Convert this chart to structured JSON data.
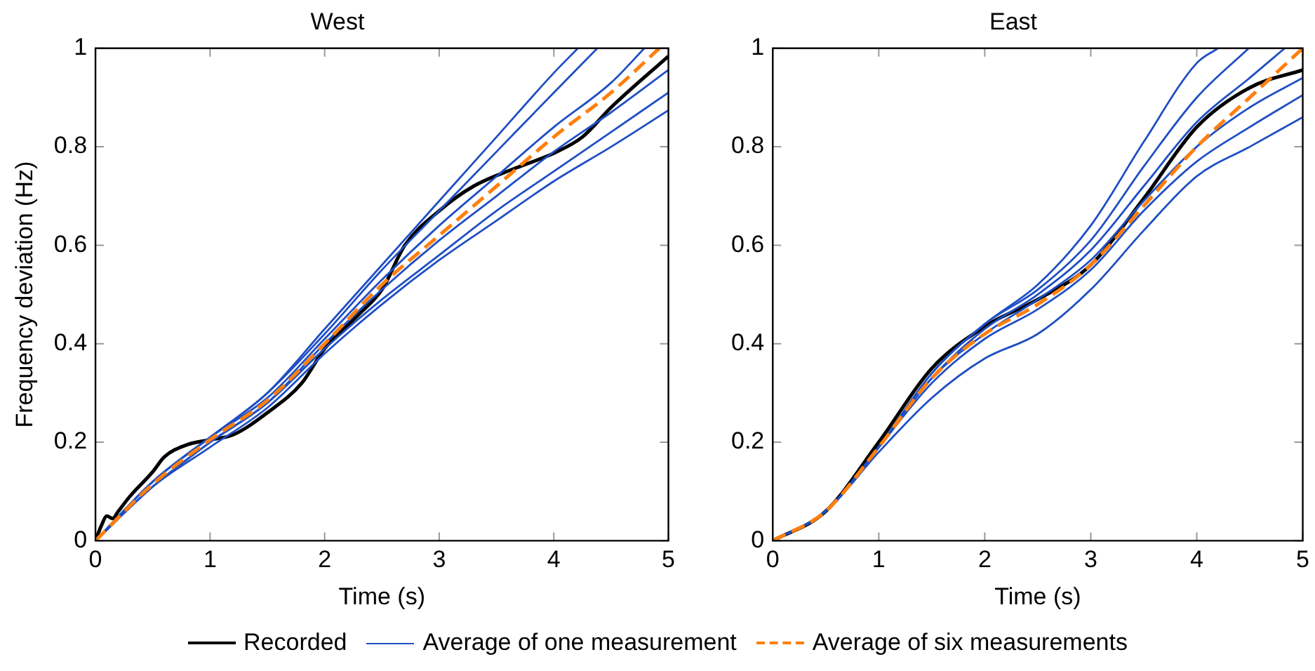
{
  "chart_data": [
    {
      "type": "line",
      "title": "West",
      "xlabel": "Time (s)",
      "ylabel": "Frequency deviation (Hz)",
      "xlim": [
        0,
        5
      ],
      "ylim": [
        0,
        1
      ],
      "xticks": [
        0,
        1,
        2,
        3,
        4,
        5
      ],
      "yticks": [
        0,
        0.2,
        0.4,
        0.6,
        0.8,
        1
      ],
      "grid": false,
      "legend": "bottom",
      "marker": "none",
      "series": [
        {
          "name": "Recorded",
          "color": "#000000",
          "line_style": "solid",
          "x": [
            0,
            0.05,
            0.1,
            0.15,
            0.2,
            0.3,
            0.5,
            0.6,
            0.8,
            1,
            1.2,
            1.5,
            1.8,
            2,
            2.3,
            2.5,
            2.7,
            3,
            3.3,
            3.67,
            4,
            4.25,
            4.5,
            5
          ],
          "values": [
            0,
            0.03,
            0.05,
            0.045,
            0.06,
            0.09,
            0.14,
            0.17,
            0.195,
            0.205,
            0.215,
            0.26,
            0.32,
            0.39,
            0.46,
            0.51,
            0.6,
            0.67,
            0.72,
            0.757,
            0.787,
            0.82,
            0.88,
            0.984
          ]
        },
        {
          "name": "Average of one measurement",
          "color": "#1f4fc4",
          "line_style": "solid",
          "x": [
            0,
            0.5,
            1,
            1.5,
            2,
            2.5,
            3,
            3.5,
            4,
            4.21
          ],
          "values": [
            0,
            0.12,
            0.21,
            0.3,
            0.43,
            0.56,
            0.69,
            0.82,
            0.95,
            1
          ]
        },
        {
          "color": "#1f4fc4",
          "line_style": "solid",
          "x": [
            0,
            0.5,
            1,
            1.5,
            2,
            2.5,
            3,
            3.5,
            4,
            4.38
          ],
          "values": [
            0,
            0.12,
            0.21,
            0.3,
            0.42,
            0.55,
            0.67,
            0.79,
            0.91,
            1
          ]
        },
        {
          "color": "#1f4fc4",
          "line_style": "solid",
          "x": [
            0,
            0.5,
            1,
            1.5,
            2,
            2.5,
            3,
            3.5,
            4,
            4.5,
            4.79
          ],
          "values": [
            0,
            0.12,
            0.21,
            0.29,
            0.41,
            0.53,
            0.64,
            0.74,
            0.84,
            0.93,
            1
          ]
        },
        {
          "color": "#1f4fc4",
          "line_style": "solid",
          "x": [
            0,
            0.5,
            1,
            1.5,
            2,
            2.5,
            3,
            3.5,
            4,
            4.5,
            5
          ],
          "values": [
            0,
            0.11,
            0.2,
            0.28,
            0.4,
            0.51,
            0.61,
            0.7,
            0.79,
            0.87,
            0.956
          ]
        },
        {
          "color": "#1f4fc4",
          "line_style": "solid",
          "x": [
            0,
            0.5,
            1,
            1.5,
            2,
            2.5,
            3,
            3.5,
            4,
            4.5,
            5
          ],
          "values": [
            0,
            0.11,
            0.2,
            0.28,
            0.39,
            0.49,
            0.58,
            0.67,
            0.75,
            0.83,
            0.91
          ]
        },
        {
          "color": "#1f4fc4",
          "line_style": "solid",
          "x": [
            0,
            0.5,
            1,
            1.5,
            2,
            2.5,
            3,
            3.5,
            4,
            4.5,
            5
          ],
          "values": [
            0,
            0.11,
            0.19,
            0.27,
            0.38,
            0.48,
            0.57,
            0.65,
            0.73,
            0.8,
            0.874
          ]
        },
        {
          "name": "Average of six measurements",
          "color": "#ff7f0e",
          "line_style": "dashed",
          "x": [
            0,
            0.5,
            1,
            1.5,
            2,
            2.5,
            3,
            3.5,
            4,
            4.5,
            4.92
          ],
          "values": [
            0,
            0.115,
            0.205,
            0.285,
            0.4,
            0.52,
            0.62,
            0.72,
            0.82,
            0.91,
            1
          ]
        }
      ]
    },
    {
      "type": "line",
      "title": "East",
      "xlabel": "Time (s)",
      "xlim": [
        0,
        5
      ],
      "ylim": [
        0,
        1
      ],
      "xticks": [
        0,
        1,
        2,
        3,
        4,
        5
      ],
      "yticks": [
        0,
        0.2,
        0.4,
        0.6,
        0.8,
        1
      ],
      "grid": false,
      "legend": "bottom",
      "marker": "none",
      "series": [
        {
          "name": "Recorded",
          "color": "#000000",
          "line_style": "solid",
          "x": [
            0,
            0.5,
            1,
            1.5,
            2,
            2.5,
            3,
            3.5,
            4,
            4.5,
            5
          ],
          "values": [
            0,
            0.06,
            0.2,
            0.35,
            0.435,
            0.49,
            0.56,
            0.695,
            0.84,
            0.92,
            0.956
          ]
        },
        {
          "name": "Average of one measurement",
          "color": "#1f4fc4",
          "line_style": "solid",
          "x": [
            0,
            0.5,
            1,
            1.5,
            2,
            2.5,
            3,
            3.5,
            4,
            4.2
          ],
          "values": [
            0,
            0.06,
            0.19,
            0.34,
            0.44,
            0.52,
            0.64,
            0.81,
            0.97,
            1
          ]
        },
        {
          "color": "#1f4fc4",
          "line_style": "solid",
          "x": [
            0,
            0.5,
            1,
            1.5,
            2,
            2.5,
            3,
            3.5,
            4,
            4.49
          ],
          "values": [
            0,
            0.06,
            0.19,
            0.34,
            0.44,
            0.51,
            0.61,
            0.76,
            0.9,
            1
          ]
        },
        {
          "color": "#1f4fc4",
          "line_style": "solid",
          "x": [
            0,
            0.5,
            1,
            1.5,
            2,
            2.5,
            3,
            3.5,
            4,
            4.5,
            4.83
          ],
          "values": [
            0,
            0.06,
            0.19,
            0.33,
            0.43,
            0.5,
            0.59,
            0.72,
            0.85,
            0.94,
            1
          ]
        },
        {
          "color": "#1f4fc4",
          "line_style": "solid",
          "x": [
            0,
            0.5,
            1,
            1.5,
            2,
            2.5,
            3,
            3.5,
            4,
            4.5,
            5
          ],
          "values": [
            0,
            0.06,
            0.19,
            0.33,
            0.42,
            0.49,
            0.57,
            0.69,
            0.8,
            0.88,
            0.94
          ]
        },
        {
          "color": "#1f4fc4",
          "line_style": "solid",
          "x": [
            0,
            0.5,
            1,
            1.5,
            2,
            2.5,
            3,
            3.5,
            4,
            4.5,
            5
          ],
          "values": [
            0,
            0.06,
            0.19,
            0.32,
            0.41,
            0.47,
            0.55,
            0.67,
            0.77,
            0.84,
            0.905
          ]
        },
        {
          "color": "#1f4fc4",
          "line_style": "solid",
          "x": [
            0,
            0.5,
            1,
            1.5,
            2,
            2.5,
            3,
            3.5,
            4,
            4.5,
            5
          ],
          "values": [
            0,
            0.06,
            0.18,
            0.29,
            0.37,
            0.42,
            0.51,
            0.63,
            0.74,
            0.8,
            0.86
          ]
        },
        {
          "name": "Average of six measurements",
          "color": "#ff7f0e",
          "line_style": "dashed",
          "x": [
            0,
            0.5,
            1,
            1.5,
            2,
            2.5,
            3,
            3.5,
            4,
            4.5,
            5
          ],
          "values": [
            0,
            0.06,
            0.19,
            0.33,
            0.42,
            0.48,
            0.56,
            0.68,
            0.8,
            0.9,
            1
          ]
        }
      ]
    }
  ]
}
